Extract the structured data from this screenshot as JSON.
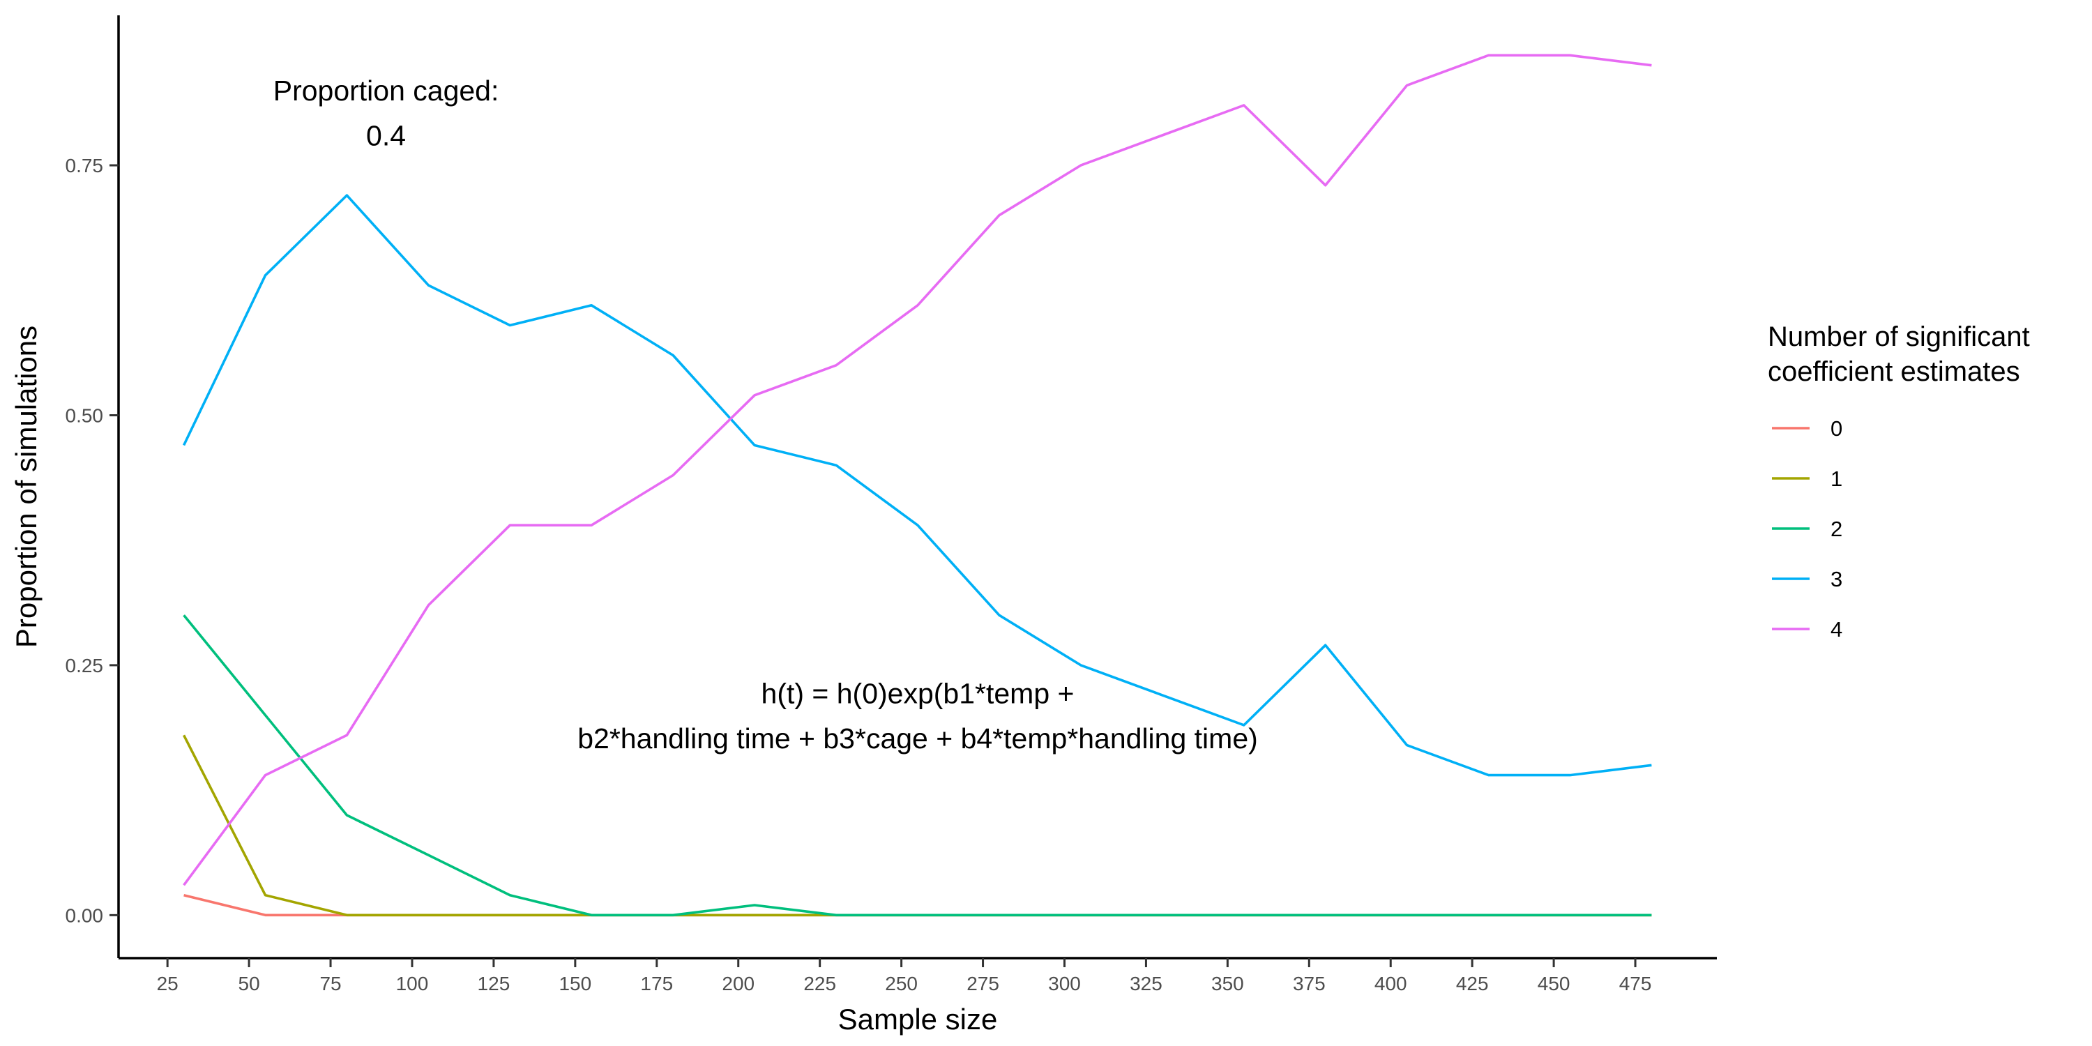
{
  "chart_data": {
    "type": "line",
    "xlabel": "Sample size",
    "ylabel": "Proportion of simulations",
    "xlim": [
      10,
      500
    ],
    "ylim": [
      -0.043,
      0.9
    ],
    "x_ticks": [
      25,
      50,
      75,
      100,
      125,
      150,
      175,
      200,
      225,
      250,
      275,
      300,
      325,
      350,
      375,
      400,
      425,
      450,
      475
    ],
    "x_tick_labels": [
      "25",
      "50",
      "75",
      "100",
      "125",
      "150",
      "175",
      "200",
      "225",
      "250",
      "275",
      "300",
      "325",
      "350",
      "375",
      "400",
      "425",
      "450",
      "475"
    ],
    "y_ticks": [
      0,
      0.25,
      0.5,
      0.75
    ],
    "y_tick_labels": [
      "0.00",
      "0.25",
      "0.50",
      "0.75"
    ],
    "grid": false,
    "legend": {
      "placement": "right",
      "title_line1": "Number of significant",
      "title_line2": "coefficient estimates"
    },
    "annotations": {
      "caged_line1": "Proportion caged:",
      "caged_line2": "0.4",
      "formula_line1": "h(t) = h(0)exp(b1*temp +",
      "formula_line2": "b2*handling time + b3*cage + b4*temp*handling time)"
    },
    "x": [
      30,
      55,
      80,
      105,
      130,
      155,
      180,
      205,
      230,
      255,
      280,
      305,
      330,
      355,
      380,
      405,
      430,
      455,
      480
    ],
    "series": [
      {
        "name": "0",
        "color": "#F8766D",
        "values": [
          0.02,
          0,
          0,
          0,
          0,
          0,
          0,
          0,
          0,
          0,
          0,
          0,
          0,
          0,
          0,
          0,
          0,
          0,
          0
        ]
      },
      {
        "name": "1",
        "color": "#A3A500",
        "values": [
          0.18,
          0.02,
          0,
          0,
          0,
          0,
          0,
          0,
          0,
          0,
          0,
          0,
          0,
          0,
          0,
          0,
          0,
          0,
          0
        ]
      },
      {
        "name": "2",
        "color": "#00BF7D",
        "values": [
          0.3,
          0.2,
          0.1,
          0.06,
          0.02,
          0,
          0,
          0.01,
          0,
          0,
          0,
          0,
          0,
          0,
          0,
          0,
          0,
          0,
          0
        ]
      },
      {
        "name": "3",
        "color": "#00B0F6",
        "values": [
          0.47,
          0.64,
          0.72,
          0.63,
          0.59,
          0.61,
          0.56,
          0.47,
          0.45,
          0.39,
          0.3,
          0.25,
          0.22,
          0.19,
          0.27,
          0.17,
          0.14,
          0.14,
          0.15
        ]
      },
      {
        "name": "4",
        "color": "#E76BF3",
        "values": [
          0.03,
          0.14,
          0.18,
          0.31,
          0.39,
          0.39,
          0.44,
          0.52,
          0.55,
          0.61,
          0.7,
          0.75,
          0.78,
          0.81,
          0.73,
          0.83,
          0.86,
          0.86,
          0.85
        ]
      }
    ]
  }
}
